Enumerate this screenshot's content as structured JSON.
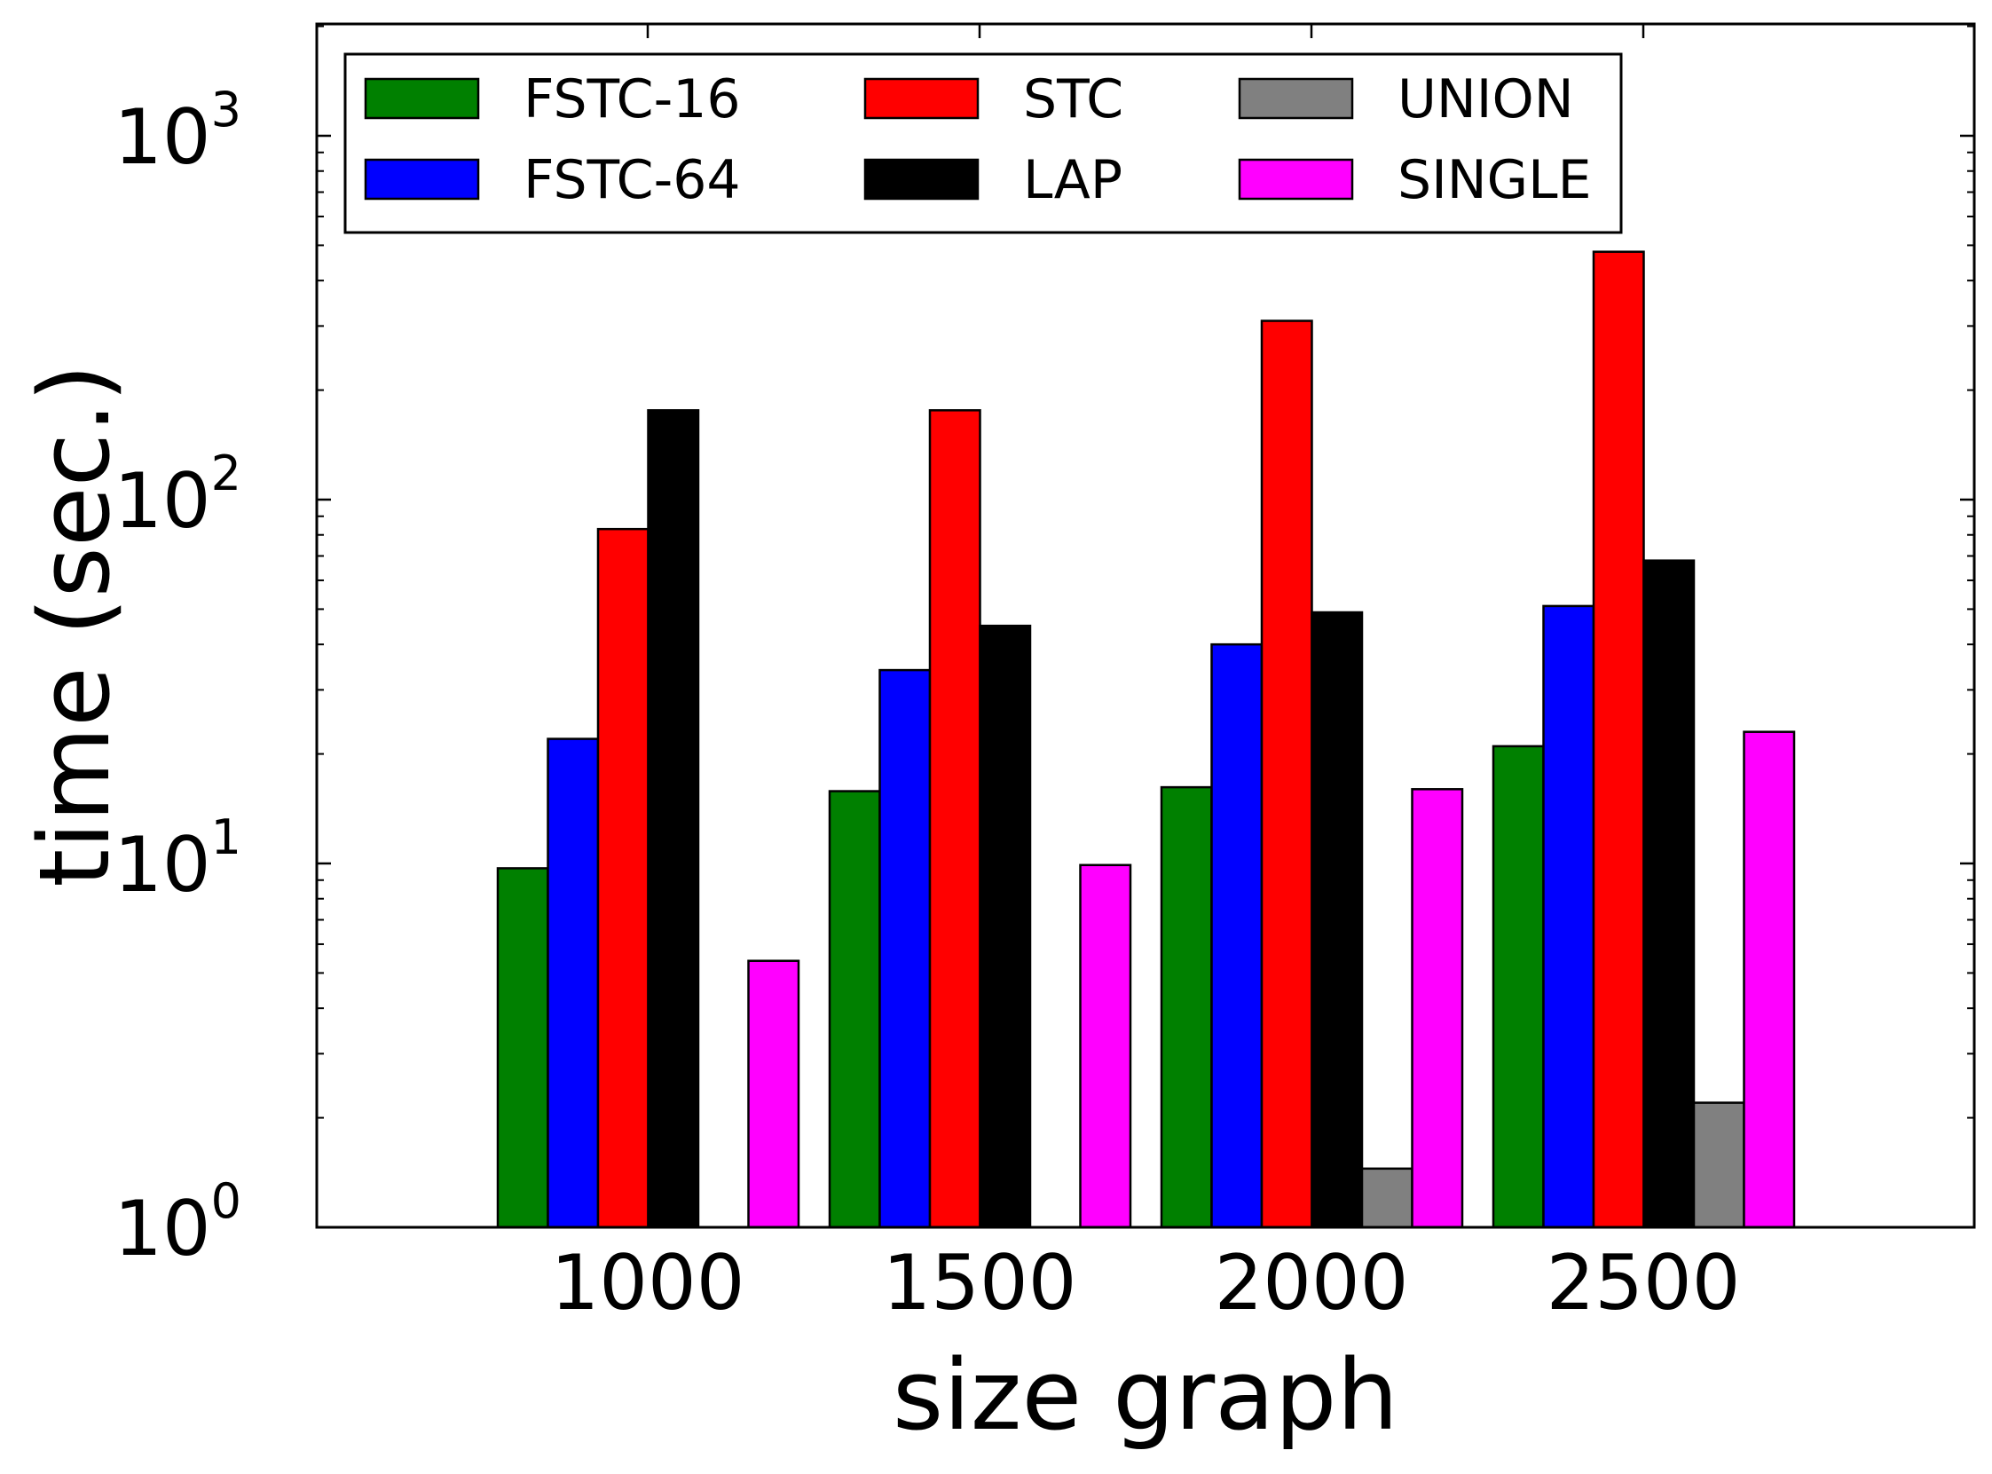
{
  "chart_data": {
    "type": "bar",
    "scale": "log",
    "title": "",
    "xlabel": "size graph",
    "ylabel": "time (sec.)",
    "ylim": [
      1,
      2000
    ],
    "categories": [
      "1000",
      "1500",
      "2000",
      "2500"
    ],
    "y_ticks": [
      {
        "base": "10",
        "exp": "0",
        "value": 1
      },
      {
        "base": "10",
        "exp": "1",
        "value": 10
      },
      {
        "base": "10",
        "exp": "2",
        "value": 100
      },
      {
        "base": "10",
        "exp": "3",
        "value": 1000
      }
    ],
    "legend_position": "top-left",
    "legend_columns": 3,
    "series": [
      {
        "name": "FSTC-16",
        "color": "#008000",
        "values": [
          9.7,
          15.8,
          16.2,
          21
        ]
      },
      {
        "name": "FSTC-64",
        "color": "#0000ff",
        "values": [
          22,
          34,
          40,
          51
        ]
      },
      {
        "name": "STC",
        "color": "#ff0000",
        "values": [
          83,
          176,
          310,
          480
        ]
      },
      {
        "name": "LAP",
        "color": "#000000",
        "values": [
          176,
          45,
          49,
          68
        ]
      },
      {
        "name": "UNION",
        "color": "#808080",
        "values": [
          null,
          null,
          1.45,
          2.2
        ]
      },
      {
        "name": "SINGLE",
        "color": "#ff00ff",
        "values": [
          5.4,
          9.9,
          16,
          23
        ]
      }
    ]
  }
}
